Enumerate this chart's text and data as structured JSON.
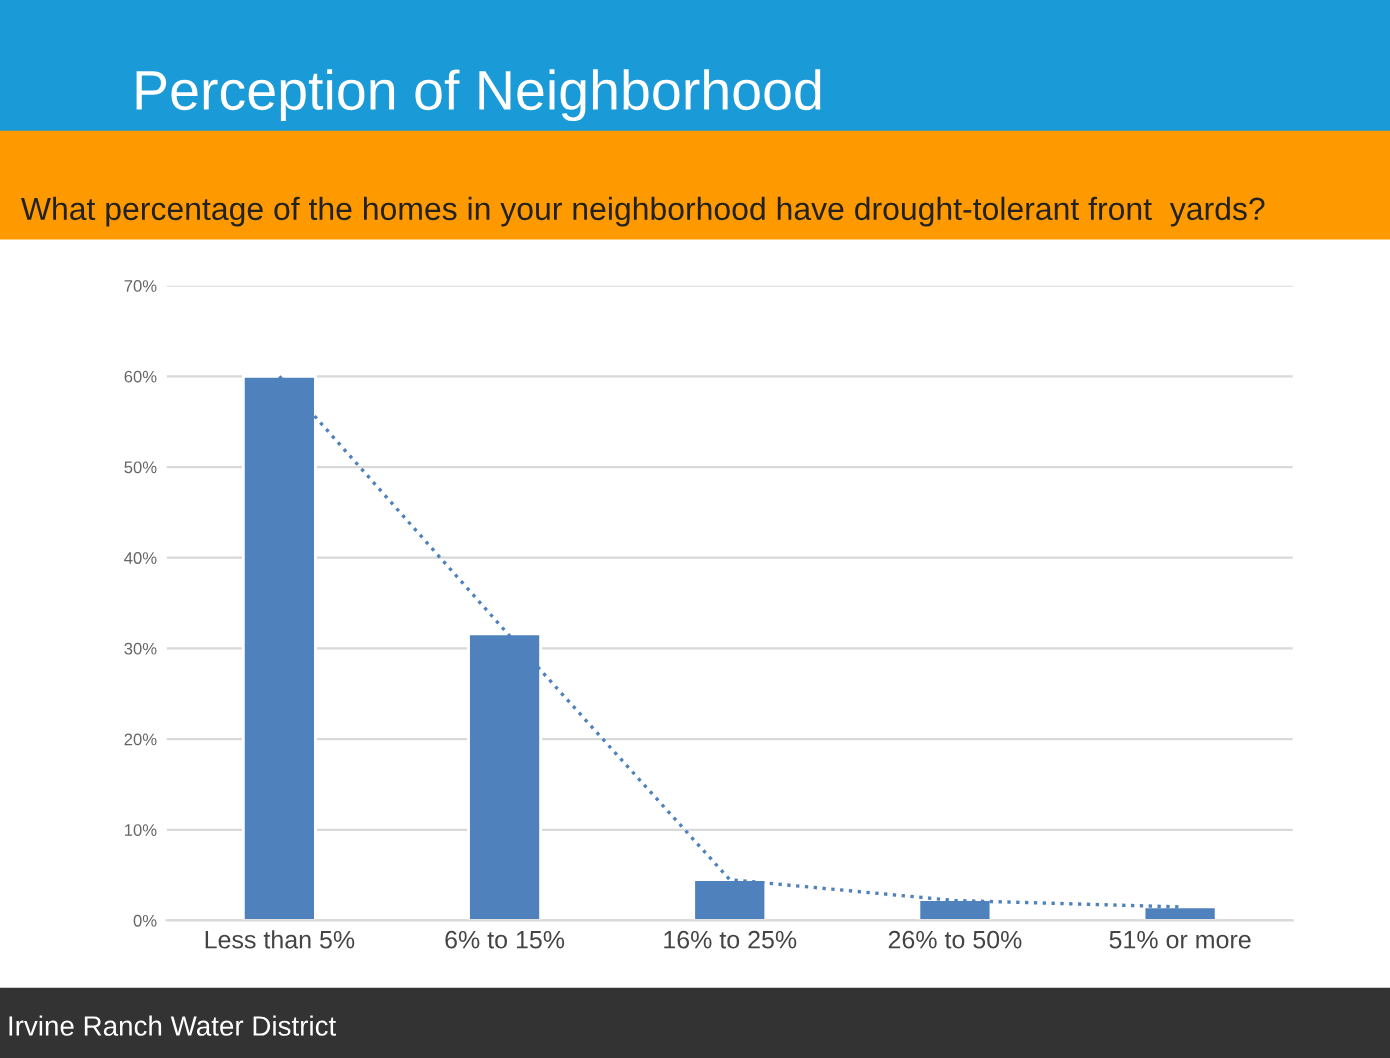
{
  "chart_data": {
    "type": "bar",
    "title": "Perception of Neighborhood",
    "subtitle": "What percentage of the homes in your neighborhood have drought-tolerant front  yards?",
    "categories": [
      "Less than 5%",
      "6% to 15%",
      "16% to 25%",
      "26% to 50%",
      "51% or more"
    ],
    "series": [
      {
        "color": "#4f81bd",
        "values": [
          60,
          31.6,
          4.5,
          2.3,
          1.5
        ]
      },
      {
        "type": "line",
        "color": "#4f81bd",
        "line_style": "dotted",
        "values": [
          60,
          32,
          4.5,
          2.2,
          1.5
        ]
      }
    ],
    "ylim": [
      0,
      70
    ],
    "yticks": [
      {
        "value": 0,
        "label": "0%"
      },
      {
        "value": 10,
        "label": "10%"
      },
      {
        "value": 20,
        "label": "20%"
      },
      {
        "value": 30,
        "label": "30%"
      },
      {
        "value": 40,
        "label": "40%"
      },
      {
        "value": 50,
        "label": "50%"
      },
      {
        "value": 60,
        "label": "60%"
      },
      {
        "value": 70,
        "label": "70%"
      }
    ],
    "grid": "y",
    "legend": false,
    "annotations": [
      "Irvine Ranch Water District"
    ]
  }
}
